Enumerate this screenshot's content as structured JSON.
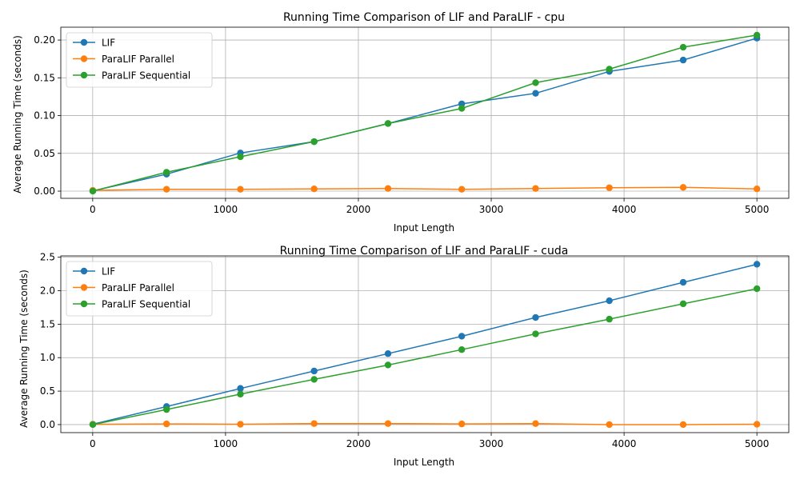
{
  "colors": {
    "LIF": "#1f77b4",
    "ParaLIF Parallel": "#ff7f0e",
    "ParaLIF Sequential": "#2ca02c",
    "grid": "#b0b0b0",
    "axes": "#000000"
  },
  "chart_data": [
    {
      "type": "line",
      "title": "Running Time Comparison of LIF and ParaLIF - cpu",
      "xlabel": "Input Length",
      "ylabel": "Average Running Time (seconds)",
      "xlim": [
        -240,
        5240
      ],
      "ylim": [
        -0.0095,
        0.217
      ],
      "xticks": [
        0,
        1000,
        2000,
        3000,
        4000,
        5000
      ],
      "xtick_labels": [
        "0",
        "1000",
        "2000",
        "3000",
        "4000",
        "5000"
      ],
      "yticks": [
        0.0,
        0.05,
        0.1,
        0.15,
        0.2
      ],
      "ytick_labels": [
        "0.00",
        "0.05",
        "0.10",
        "0.15",
        "0.20"
      ],
      "grid": true,
      "legend": "upper-left",
      "x": [
        1,
        556,
        1112,
        1667,
        2223,
        2778,
        3334,
        3889,
        4445,
        5000
      ],
      "series": [
        {
          "name": "LIF",
          "values": [
            0.0003,
            0.0225,
            0.0505,
            0.0655,
            0.0895,
            0.1155,
            0.1295,
            0.1585,
            0.1735,
            0.2025
          ]
        },
        {
          "name": "ParaLIF Parallel",
          "values": [
            0.001,
            0.0025,
            0.0025,
            0.003,
            0.0035,
            0.0025,
            0.0035,
            0.0045,
            0.005,
            0.003
          ]
        },
        {
          "name": "ParaLIF Sequential",
          "values": [
            0.0001,
            0.025,
            0.0455,
            0.0655,
            0.0895,
            0.1095,
            0.1435,
            0.1615,
            0.1905,
            0.2065
          ]
        }
      ]
    },
    {
      "type": "line",
      "title": "Running Time Comparison of LIF and ParaLIF - cuda",
      "xlabel": "Input Length",
      "ylabel": "Average Running Time (seconds)",
      "xlim": [
        -240,
        5240
      ],
      "ylim": [
        -0.12,
        2.52
      ],
      "xticks": [
        0,
        1000,
        2000,
        3000,
        4000,
        5000
      ],
      "xtick_labels": [
        "0",
        "1000",
        "2000",
        "3000",
        "4000",
        "5000"
      ],
      "yticks": [
        0.0,
        0.5,
        1.0,
        1.5,
        2.0,
        2.5
      ],
      "ytick_labels": [
        "0.0",
        "0.5",
        "1.0",
        "1.5",
        "2.0",
        "2.5"
      ],
      "grid": true,
      "legend": "upper-left",
      "x": [
        1,
        556,
        1112,
        1667,
        2223,
        2778,
        3334,
        3889,
        4445,
        5000
      ],
      "series": [
        {
          "name": "LIF",
          "values": [
            0.005,
            0.27,
            0.54,
            0.8,
            1.06,
            1.32,
            1.6,
            1.85,
            2.125,
            2.395
          ]
        },
        {
          "name": "ParaLIF Parallel",
          "values": [
            0.005,
            0.01,
            0.005,
            0.015,
            0.015,
            0.01,
            0.015,
            0.0,
            0.0,
            0.005
          ]
        },
        {
          "name": "ParaLIF Sequential",
          "values": [
            0.0,
            0.225,
            0.455,
            0.675,
            0.89,
            1.12,
            1.355,
            1.575,
            1.805,
            2.03
          ]
        }
      ]
    }
  ]
}
